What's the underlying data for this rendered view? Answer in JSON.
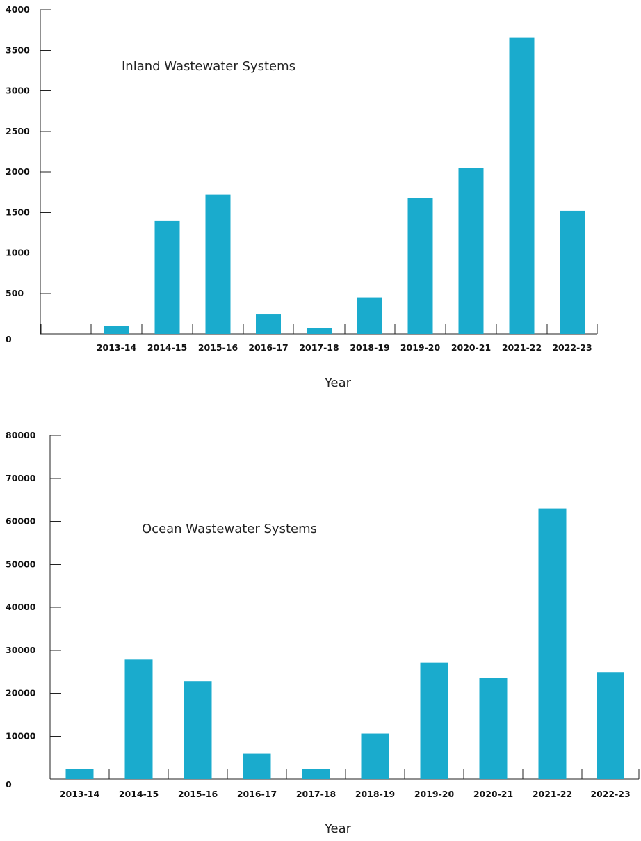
{
  "colors": {
    "bar": "#1AABCD",
    "axis": "#222222",
    "text": "#111111"
  },
  "chart_data": [
    {
      "type": "bar",
      "title": "Inland Wastewater Systems",
      "xlabel": "Year",
      "ylabel": "",
      "ylim": [
        0,
        4000
      ],
      "yticks": [
        0,
        500,
        1000,
        1500,
        2000,
        2500,
        3000,
        3500,
        4000
      ],
      "categories": [
        "2013-14",
        "2014-15",
        "2015-16",
        "2016-17",
        "2017-18",
        "2018-19",
        "2019-20",
        "2020-21",
        "2021-22",
        "2022-23"
      ],
      "values": [
        100,
        1400,
        1720,
        240,
        70,
        450,
        1680,
        2050,
        3660,
        1520
      ],
      "legend": "none",
      "grid": false
    },
    {
      "type": "bar",
      "title": "Ocean Wastewater Systems",
      "xlabel": "Year",
      "ylabel": "",
      "ylim": [
        0,
        80000
      ],
      "yticks": [
        0,
        10000,
        20000,
        30000,
        40000,
        50000,
        60000,
        70000,
        80000
      ],
      "categories": [
        "2013-14",
        "2014-15",
        "2015-16",
        "2016-17",
        "2017-18",
        "2018-19",
        "2019-20",
        "2020-21",
        "2021-22",
        "2022-23"
      ],
      "values": [
        2400,
        27800,
        22800,
        5900,
        2400,
        10600,
        27100,
        23600,
        62900,
        24900
      ],
      "legend": "none",
      "grid": false
    }
  ]
}
